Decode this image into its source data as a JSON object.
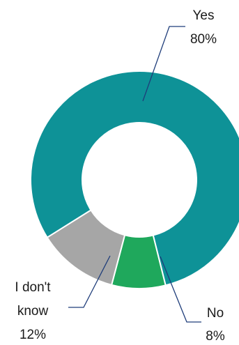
{
  "chart_data": {
    "type": "pie",
    "style": "donut",
    "title": "",
    "slices": [
      {
        "name": "Yes",
        "value": 80,
        "percent_label": "80%",
        "color": "#0E9297"
      },
      {
        "name": "No",
        "value": 8,
        "percent_label": "8%",
        "color": "#1FA85C"
      },
      {
        "name": "I don't know",
        "name_lines": [
          "I don't",
          "know"
        ],
        "value": 12,
        "percent_label": "12%",
        "color": "#A6A6A6"
      }
    ],
    "legend": "none",
    "data_labels": "outside-with-leader-lines"
  }
}
